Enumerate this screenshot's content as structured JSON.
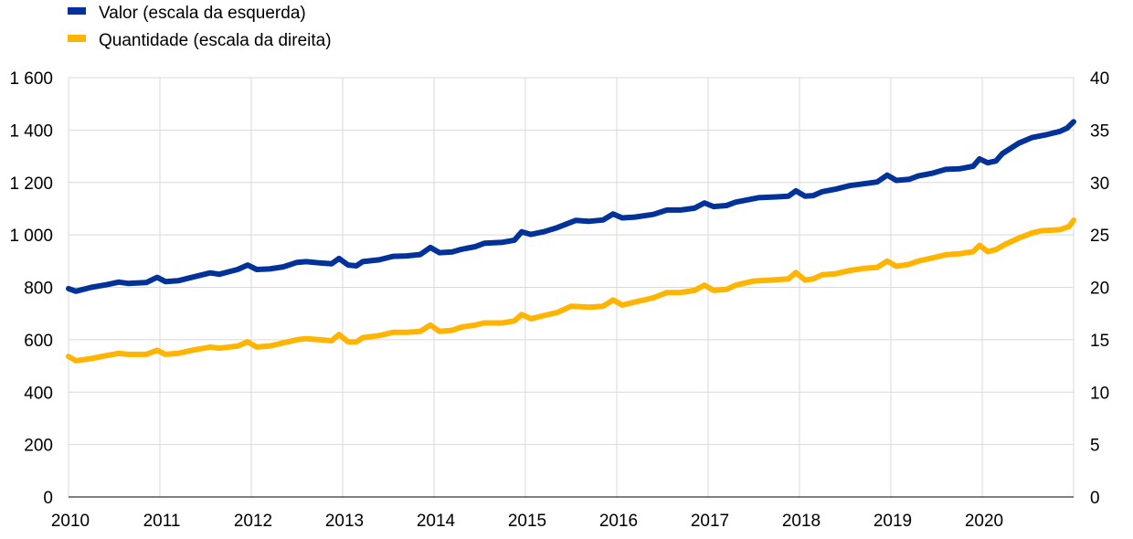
{
  "chart_data": {
    "type": "line",
    "legend_position": "top-left",
    "grid": true,
    "x_tick_labels": [
      "2010",
      "2011",
      "2012",
      "2013",
      "2014",
      "2015",
      "2016",
      "2017",
      "2018",
      "2019",
      "2020"
    ],
    "x_range": [
      2010,
      2021
    ],
    "left_axis": {
      "range": [
        0,
        1600
      ],
      "ticks": [
        0,
        200,
        400,
        600,
        800,
        1000,
        1200,
        1400,
        1600
      ],
      "tick_labels": [
        "0",
        "200",
        "400",
        "600",
        "800",
        "1 000",
        "1 200",
        "1 400",
        "1 600"
      ]
    },
    "right_axis": {
      "range": [
        0,
        40
      ],
      "ticks": [
        0,
        5,
        10,
        15,
        20,
        25,
        30,
        35,
        40
      ],
      "tick_labels": [
        "0",
        "5",
        "10",
        "15",
        "20",
        "25",
        "30",
        "35",
        "40"
      ]
    },
    "series": [
      {
        "name": "Valor (escala da esquerda)",
        "axis": "left",
        "color": "#003299",
        "points": [
          [
            2010.0,
            795
          ],
          [
            2010.08,
            785
          ],
          [
            2010.25,
            800
          ],
          [
            2010.42,
            810
          ],
          [
            2010.55,
            820
          ],
          [
            2010.65,
            815
          ],
          [
            2010.85,
            818
          ],
          [
            2010.97,
            838
          ],
          [
            2011.06,
            822
          ],
          [
            2011.2,
            825
          ],
          [
            2011.35,
            838
          ],
          [
            2011.55,
            855
          ],
          [
            2011.65,
            850
          ],
          [
            2011.85,
            868
          ],
          [
            2011.96,
            885
          ],
          [
            2012.06,
            868
          ],
          [
            2012.2,
            870
          ],
          [
            2012.35,
            878
          ],
          [
            2012.5,
            895
          ],
          [
            2012.6,
            898
          ],
          [
            2012.75,
            893
          ],
          [
            2012.88,
            890
          ],
          [
            2012.96,
            910
          ],
          [
            2013.06,
            885
          ],
          [
            2013.15,
            882
          ],
          [
            2013.22,
            898
          ],
          [
            2013.4,
            905
          ],
          [
            2013.55,
            918
          ],
          [
            2013.7,
            920
          ],
          [
            2013.85,
            925
          ],
          [
            2013.96,
            952
          ],
          [
            2014.06,
            932
          ],
          [
            2014.2,
            935
          ],
          [
            2014.3,
            945
          ],
          [
            2014.45,
            955
          ],
          [
            2014.55,
            968
          ],
          [
            2014.75,
            972
          ],
          [
            2014.88,
            980
          ],
          [
            2014.96,
            1012
          ],
          [
            2015.06,
            1002
          ],
          [
            2015.2,
            1012
          ],
          [
            2015.35,
            1028
          ],
          [
            2015.55,
            1055
          ],
          [
            2015.7,
            1052
          ],
          [
            2015.85,
            1057
          ],
          [
            2015.96,
            1080
          ],
          [
            2016.06,
            1065
          ],
          [
            2016.2,
            1068
          ],
          [
            2016.4,
            1078
          ],
          [
            2016.55,
            1095
          ],
          [
            2016.7,
            1095
          ],
          [
            2016.85,
            1102
          ],
          [
            2016.96,
            1122
          ],
          [
            2017.06,
            1108
          ],
          [
            2017.2,
            1112
          ],
          [
            2017.3,
            1125
          ],
          [
            2017.55,
            1142
          ],
          [
            2017.75,
            1145
          ],
          [
            2017.88,
            1148
          ],
          [
            2017.96,
            1168
          ],
          [
            2018.06,
            1148
          ],
          [
            2018.15,
            1150
          ],
          [
            2018.25,
            1165
          ],
          [
            2018.4,
            1175
          ],
          [
            2018.55,
            1188
          ],
          [
            2018.7,
            1195
          ],
          [
            2018.85,
            1202
          ],
          [
            2018.96,
            1228
          ],
          [
            2019.06,
            1208
          ],
          [
            2019.2,
            1212
          ],
          [
            2019.3,
            1225
          ],
          [
            2019.45,
            1235
          ],
          [
            2019.6,
            1250
          ],
          [
            2019.75,
            1252
          ],
          [
            2019.9,
            1262
          ],
          [
            2019.97,
            1290
          ],
          [
            2020.06,
            1275
          ],
          [
            2020.15,
            1282
          ],
          [
            2020.22,
            1310
          ],
          [
            2020.4,
            1350
          ],
          [
            2020.55,
            1372
          ],
          [
            2020.7,
            1382
          ],
          [
            2020.85,
            1395
          ],
          [
            2020.93,
            1408
          ],
          [
            2021.0,
            1432
          ]
        ]
      },
      {
        "name": "Quantidade (escala da direita)",
        "axis": "right",
        "color": "#FFB400",
        "points": [
          [
            2010.0,
            13.4
          ],
          [
            2010.08,
            13.0
          ],
          [
            2010.25,
            13.2
          ],
          [
            2010.42,
            13.5
          ],
          [
            2010.55,
            13.7
          ],
          [
            2010.65,
            13.6
          ],
          [
            2010.85,
            13.6
          ],
          [
            2010.97,
            14.0
          ],
          [
            2011.06,
            13.6
          ],
          [
            2011.2,
            13.7
          ],
          [
            2011.35,
            14.0
          ],
          [
            2011.55,
            14.3
          ],
          [
            2011.65,
            14.2
          ],
          [
            2011.85,
            14.4
          ],
          [
            2011.96,
            14.8
          ],
          [
            2012.06,
            14.3
          ],
          [
            2012.2,
            14.4
          ],
          [
            2012.35,
            14.7
          ],
          [
            2012.5,
            15.0
          ],
          [
            2012.6,
            15.1
          ],
          [
            2012.75,
            15.0
          ],
          [
            2012.88,
            14.9
          ],
          [
            2012.96,
            15.5
          ],
          [
            2013.06,
            14.8
          ],
          [
            2013.15,
            14.8
          ],
          [
            2013.22,
            15.2
          ],
          [
            2013.4,
            15.4
          ],
          [
            2013.55,
            15.7
          ],
          [
            2013.7,
            15.7
          ],
          [
            2013.85,
            15.8
          ],
          [
            2013.96,
            16.4
          ],
          [
            2014.06,
            15.8
          ],
          [
            2014.2,
            15.9
          ],
          [
            2014.3,
            16.2
          ],
          [
            2014.45,
            16.4
          ],
          [
            2014.55,
            16.6
          ],
          [
            2014.75,
            16.6
          ],
          [
            2014.88,
            16.8
          ],
          [
            2014.96,
            17.4
          ],
          [
            2015.06,
            17.0
          ],
          [
            2015.2,
            17.3
          ],
          [
            2015.35,
            17.6
          ],
          [
            2015.5,
            18.2
          ],
          [
            2015.7,
            18.1
          ],
          [
            2015.85,
            18.2
          ],
          [
            2015.96,
            18.8
          ],
          [
            2016.06,
            18.3
          ],
          [
            2016.2,
            18.6
          ],
          [
            2016.4,
            19.0
          ],
          [
            2016.55,
            19.5
          ],
          [
            2016.7,
            19.5
          ],
          [
            2016.85,
            19.7
          ],
          [
            2016.96,
            20.2
          ],
          [
            2017.06,
            19.7
          ],
          [
            2017.2,
            19.8
          ],
          [
            2017.3,
            20.2
          ],
          [
            2017.5,
            20.6
          ],
          [
            2017.7,
            20.7
          ],
          [
            2017.88,
            20.8
          ],
          [
            2017.96,
            21.4
          ],
          [
            2018.06,
            20.7
          ],
          [
            2018.15,
            20.8
          ],
          [
            2018.25,
            21.2
          ],
          [
            2018.4,
            21.3
          ],
          [
            2018.55,
            21.6
          ],
          [
            2018.7,
            21.8
          ],
          [
            2018.85,
            21.9
          ],
          [
            2018.96,
            22.5
          ],
          [
            2019.06,
            22.0
          ],
          [
            2019.2,
            22.2
          ],
          [
            2019.3,
            22.5
          ],
          [
            2019.45,
            22.8
          ],
          [
            2019.6,
            23.1
          ],
          [
            2019.75,
            23.2
          ],
          [
            2019.9,
            23.4
          ],
          [
            2019.97,
            24.0
          ],
          [
            2020.06,
            23.4
          ],
          [
            2020.15,
            23.6
          ],
          [
            2020.25,
            24.1
          ],
          [
            2020.4,
            24.7
          ],
          [
            2020.55,
            25.2
          ],
          [
            2020.65,
            25.4
          ],
          [
            2020.85,
            25.5
          ],
          [
            2020.95,
            25.8
          ],
          [
            2021.0,
            26.4
          ]
        ]
      }
    ]
  }
}
